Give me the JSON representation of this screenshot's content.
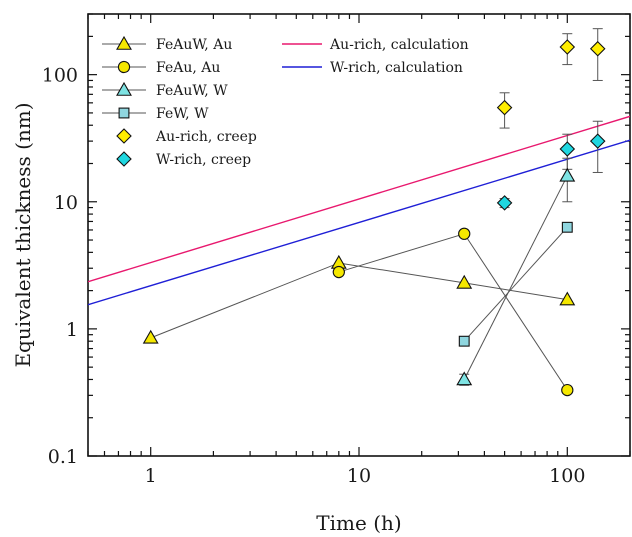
{
  "chart_data": {
    "type": "scatter",
    "xlabel": "Time (h)",
    "ylabel": "Equivalent thickness (nm)",
    "xscale": "log",
    "yscale": "log",
    "xlim": [
      0.5,
      200
    ],
    "ylim": [
      0.1,
      300
    ],
    "xticks": [
      {
        "value": 1,
        "label": "1"
      },
      {
        "value": 10,
        "label": "10"
      },
      {
        "value": 100,
        "label": "100"
      }
    ],
    "yticks": [
      {
        "value": 0.1,
        "label": "0.1"
      },
      {
        "value": 1,
        "label": "1"
      },
      {
        "value": 10,
        "label": "10"
      },
      {
        "value": 100,
        "label": "100"
      }
    ],
    "grid": false,
    "legend_placement": "top-left",
    "series": [
      {
        "name": "FeAuW, Au",
        "marker": "triangle",
        "color": "#f5e800",
        "connected": true,
        "x": [
          1,
          8,
          32,
          100
        ],
        "y": [
          0.85,
          3.3,
          2.3,
          1.7
        ]
      },
      {
        "name": "FeAu, Au",
        "marker": "circle",
        "color": "#f5e800",
        "connected": true,
        "x": [
          8,
          32,
          100
        ],
        "y": [
          2.8,
          5.6,
          0.33
        ]
      },
      {
        "name": "FeAuW, W",
        "marker": "triangle",
        "color": "#7ee3e3",
        "connected": true,
        "x": [
          32,
          100
        ],
        "y": [
          0.4,
          16
        ],
        "yerr_low": [
          0.04,
          6
        ],
        "yerr_high": [
          0.04,
          6
        ]
      },
      {
        "name": "FeW, W",
        "marker": "square",
        "color": "#8fd6df",
        "connected": true,
        "x": [
          32,
          100
        ],
        "y": [
          0.8,
          6.3
        ]
      },
      {
        "name": "Au-rich, creep",
        "marker": "diamond",
        "color": "#ffee00",
        "connected": false,
        "x": [
          50,
          100,
          140
        ],
        "y": [
          55,
          165,
          160
        ],
        "yerr_low": [
          17,
          45,
          70
        ],
        "yerr_high": [
          17,
          45,
          70
        ]
      },
      {
        "name": "W-rich, creep",
        "marker": "diamond",
        "color": "#1fd7e0",
        "connected": false,
        "x": [
          50,
          100,
          140
        ],
        "y": [
          9.8,
          26,
          30
        ],
        "yerr_low": [
          0.8,
          8,
          13
        ],
        "yerr_high": [
          0.8,
          8,
          13
        ]
      },
      {
        "name": "Au-rich, calculation",
        "type": "line",
        "color": "#e8186e",
        "x": [
          0.5,
          200
        ],
        "y": [
          2.35,
          47
        ]
      },
      {
        "name": "W-rich, calculation",
        "type": "line",
        "color": "#1f1fd6",
        "x": [
          0.5,
          200
        ],
        "y": [
          1.55,
          30.5
        ]
      }
    ]
  }
}
